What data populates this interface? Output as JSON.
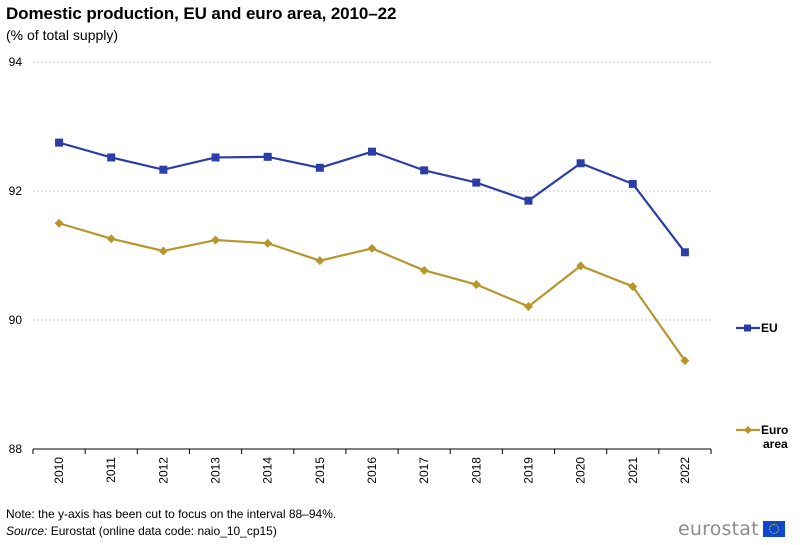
{
  "header": {
    "title": "Domestic production, EU and euro area, 2010–22",
    "subtitle": "(% of total supply)"
  },
  "footer": {
    "note": "Note: the y-axis has been cut to focus on the interval 88–94%.",
    "source_label": "Source:",
    "source_text": " Eurostat (online data code: naio_10_cp15)",
    "logo_text": "eurostat"
  },
  "colors": {
    "eu": "#2b3ea8",
    "euro_area": "#b8962e",
    "grid": "#c8c8c8",
    "axis": "#000000"
  },
  "chart_data": {
    "type": "line",
    "title": "Domestic production, EU and euro area, 2010–22",
    "subtitle": "(% of total supply)",
    "xlabel": "",
    "ylabel": "",
    "ylim": [
      88,
      94
    ],
    "yticks": [
      88,
      90,
      92,
      94
    ],
    "grid": true,
    "legend": "right",
    "categories": [
      "2010",
      "2011",
      "2012",
      "2013",
      "2014",
      "2015",
      "2016",
      "2017",
      "2018",
      "2019",
      "2020",
      "2021",
      "2022"
    ],
    "series": [
      {
        "name": "EU",
        "marker": "square",
        "values": [
          92.75,
          92.52,
          92.33,
          92.52,
          92.53,
          92.36,
          92.61,
          92.32,
          92.13,
          91.85,
          92.43,
          92.11,
          91.05
        ]
      },
      {
        "name": "Euro area",
        "marker": "diamond",
        "values": [
          91.5,
          91.26,
          91.07,
          91.24,
          91.19,
          90.92,
          91.11,
          90.77,
          90.55,
          90.21,
          90.84,
          90.52,
          89.37
        ]
      }
    ]
  }
}
